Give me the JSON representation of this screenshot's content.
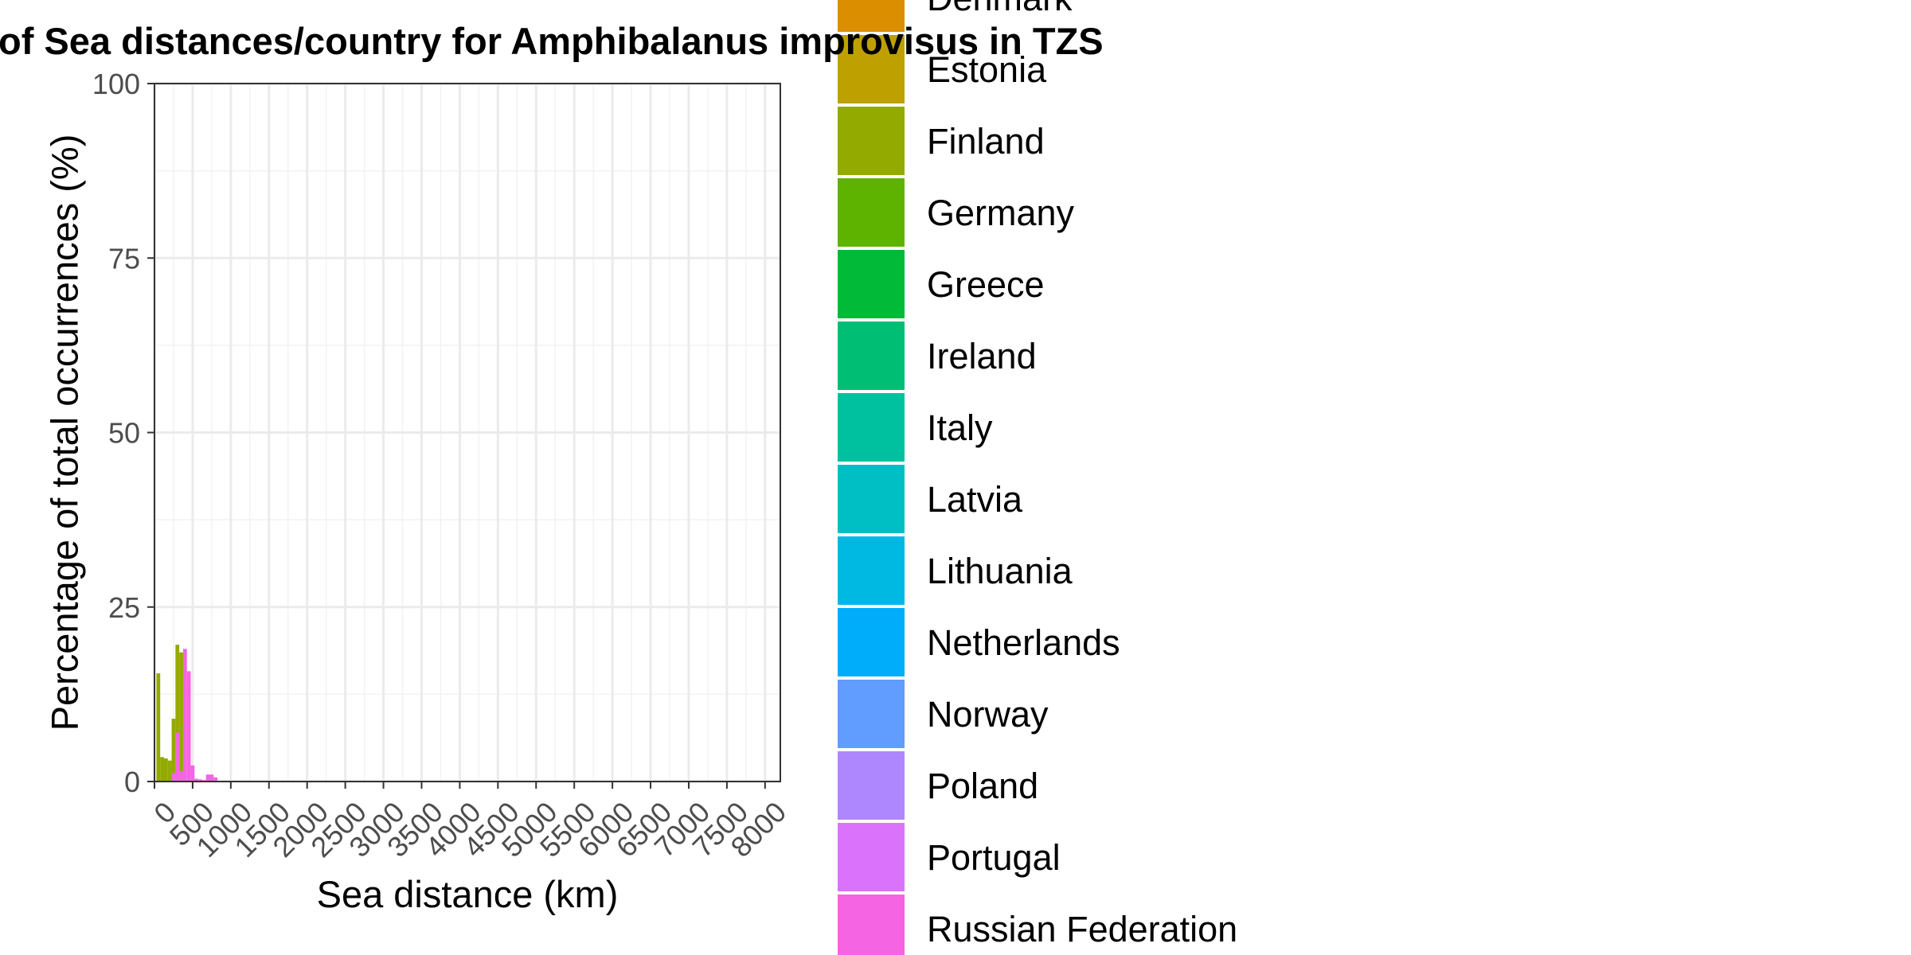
{
  "chart_data": {
    "type": "bar",
    "title": "of Sea distances/country for Amphibalanus improvisus in TZS",
    "xlabel": "Sea distance (km)",
    "ylabel": "Percentage of total occurrences (%)",
    "xlim": [
      0,
      8200
    ],
    "ylim": [
      0,
      100
    ],
    "x_ticks": [
      0,
      500,
      1000,
      1500,
      2000,
      2500,
      3000,
      3500,
      4000,
      4500,
      5000,
      5500,
      6000,
      6500,
      7000,
      7500,
      8000
    ],
    "y_ticks": [
      0,
      25,
      50,
      75,
      100
    ],
    "grid": true,
    "legend_position": "right",
    "bin_width_km": 50,
    "series": [
      {
        "name": "Finland",
        "color": "#93AA00",
        "bars": [
          {
            "x": 50,
            "value": 15.5
          },
          {
            "x": 100,
            "value": 3.5
          },
          {
            "x": 150,
            "value": 3.3
          },
          {
            "x": 200,
            "value": 3.0
          },
          {
            "x": 250,
            "value": 9.0
          },
          {
            "x": 300,
            "value": 19.6
          },
          {
            "x": 350,
            "value": 18.5
          }
        ]
      },
      {
        "name": "Russian Federation",
        "color": "#F564E3",
        "bars": [
          {
            "x": 250,
            "value": 1.2
          },
          {
            "x": 300,
            "value": 7.0
          },
          {
            "x": 350,
            "value": 1.5
          },
          {
            "x": 400,
            "value": 19.0
          },
          {
            "x": 450,
            "value": 15.8
          },
          {
            "x": 500,
            "value": 2.3
          },
          {
            "x": 550,
            "value": 0.4
          },
          {
            "x": 600,
            "value": 0.3
          },
          {
            "x": 650,
            "value": 0.2
          },
          {
            "x": 700,
            "value": 1.0
          },
          {
            "x": 750,
            "value": 1.0
          },
          {
            "x": 800,
            "value": 0.6
          }
        ]
      }
    ],
    "legend": [
      {
        "label": "Denmark",
        "color": "#DB8E00"
      },
      {
        "label": "Estonia",
        "color": "#BEA000"
      },
      {
        "label": "Finland",
        "color": "#93AA00"
      },
      {
        "label": "Germany",
        "color": "#5EB300"
      },
      {
        "label": "Greece",
        "color": "#00BA38"
      },
      {
        "label": "Ireland",
        "color": "#00BF74"
      },
      {
        "label": "Italy",
        "color": "#00C19F"
      },
      {
        "label": "Latvia",
        "color": "#00BFC4"
      },
      {
        "label": "Lithuania",
        "color": "#00B9E3"
      },
      {
        "label": "Netherlands",
        "color": "#00ADFA"
      },
      {
        "label": "Norway",
        "color": "#619CFF"
      },
      {
        "label": "Poland",
        "color": "#AE87FF"
      },
      {
        "label": "Portugal",
        "color": "#DB72FB"
      },
      {
        "label": "Russian Federation",
        "color": "#F564E3"
      }
    ]
  }
}
